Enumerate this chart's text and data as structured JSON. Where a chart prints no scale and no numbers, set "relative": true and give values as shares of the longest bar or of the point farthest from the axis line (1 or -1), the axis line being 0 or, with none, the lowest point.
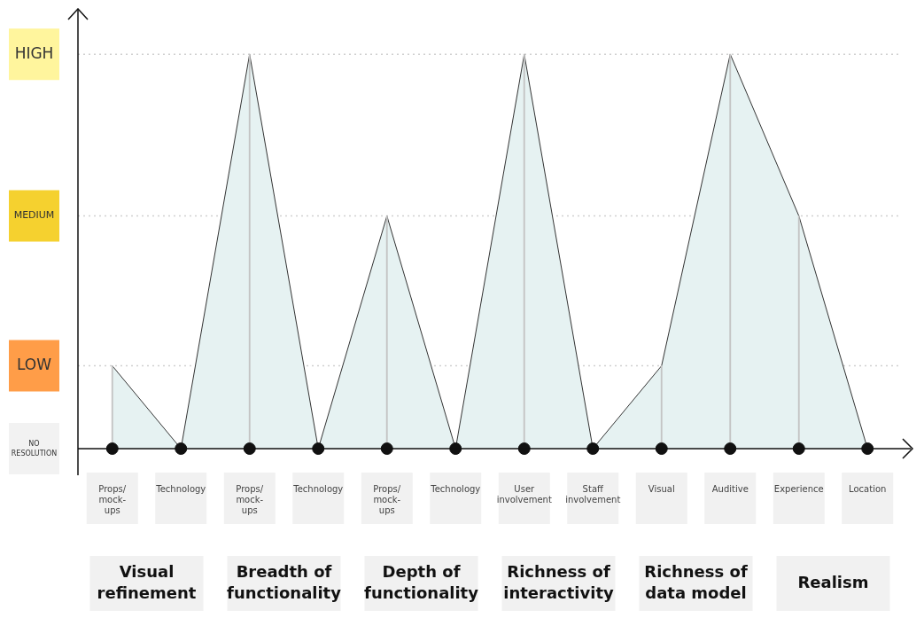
{
  "chart_data": {
    "type": "area",
    "categories": [
      "Props/mock-ups",
      "Technology",
      "Props/mock-ups",
      "Technology",
      "Props/mock-ups",
      "Technology",
      "User involvement",
      "Staff involvement",
      "Visual",
      "Auditive",
      "Experience",
      "Location"
    ],
    "series": [
      {
        "color": "#e6f2f2",
        "values": [
          0.21,
          0,
          1,
          0,
          0.59,
          0,
          1,
          0,
          0.21,
          1,
          0.59,
          0
        ]
      },
      {
        "type": "bar",
        "color": "#c4c4c4",
        "values": [
          0.21,
          0,
          1,
          0,
          0.59,
          0,
          1,
          0,
          0.21,
          1,
          0.59,
          0
        ]
      },
      {
        "type": "scatter",
        "color": "#111111",
        "marker": "circle",
        "values": [
          0,
          0,
          0,
          0,
          0,
          0,
          0,
          0,
          0,
          0,
          0,
          0
        ]
      }
    ],
    "relative": true,
    "ref_lines": [
      {
        "axis": "y",
        "value": 0,
        "label": "NO RESOLUTION"
      },
      {
        "axis": "y",
        "value": 0.21,
        "label": "LOW",
        "color": "#d0d0d0",
        "line_style": "dotted"
      },
      {
        "axis": "y",
        "value": 0.59,
        "label": "MEDIUM",
        "color": "#d0d0d0",
        "line_style": "dotted"
      },
      {
        "axis": "y",
        "value": 1,
        "label": "HIGH",
        "color": "#d0d0d0",
        "line_style": "dotted"
      }
    ],
    "annotations": [
      "Visual refinement",
      "Breadth of functionality",
      "Depth of functionality",
      "Richness of interactivity",
      "Richness of data model",
      "Realism"
    ]
  }
}
